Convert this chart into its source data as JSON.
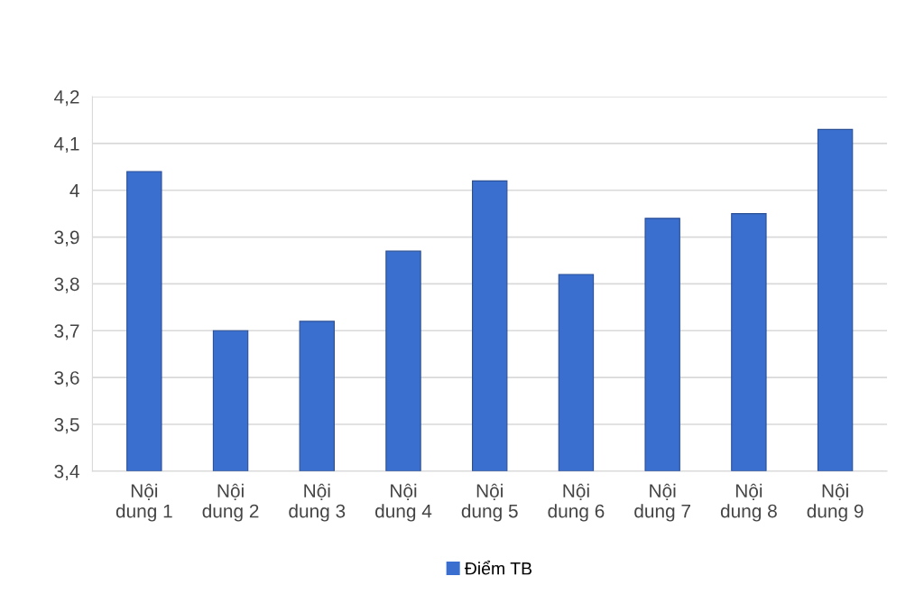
{
  "chart_data": {
    "type": "bar",
    "categories": [
      "Nội dung 1",
      "Nội dung 2",
      "Nội dung 3",
      "Nội dung 4",
      "Nội dung 5",
      "Nội dung 6",
      "Nội dung 7",
      "Nội dung 8",
      "Nội dung 9"
    ],
    "series": [
      {
        "name": "Điểm TB",
        "color": "#3a6fd0",
        "values": [
          4.04,
          3.7,
          3.72,
          3.87,
          4.02,
          3.82,
          3.94,
          3.95,
          4.13
        ]
      }
    ],
    "ylim": [
      3.4,
      4.2
    ],
    "yticks": [
      {
        "value": 3.4,
        "label": "3,4"
      },
      {
        "value": 3.5,
        "label": "3,5"
      },
      {
        "value": 3.6,
        "label": "3,6"
      },
      {
        "value": 3.7,
        "label": "3,7"
      },
      {
        "value": 3.8,
        "label": "3,8"
      },
      {
        "value": 3.9,
        "label": "3,9"
      },
      {
        "value": 4.0,
        "label": "4"
      },
      {
        "value": 4.1,
        "label": "4,1"
      },
      {
        "value": 4.2,
        "label": "4,2"
      }
    ],
    "grid": "y",
    "legend": "bottom"
  }
}
